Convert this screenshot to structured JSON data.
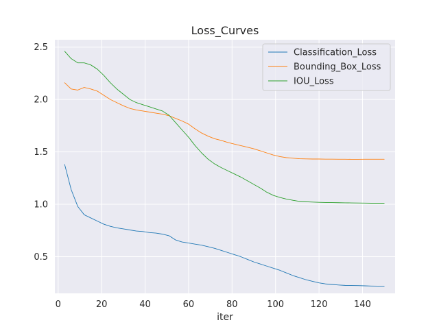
{
  "chart_data": {
    "type": "line",
    "title": "Loss_Curves",
    "xlabel": "iter",
    "ylabel": "",
    "xlim": [
      -1.5,
      155
    ],
    "ylim": [
      0.15,
      2.57
    ],
    "xticks": [
      0,
      20,
      40,
      60,
      80,
      100,
      120,
      140
    ],
    "yticks": [
      0.5,
      1.0,
      1.5,
      2.0,
      2.5
    ],
    "xtick_labels": [
      "0",
      "20",
      "40",
      "60",
      "80",
      "100",
      "120",
      "140"
    ],
    "ytick_labels": [
      "0.5",
      "1.0",
      "1.5",
      "2.0",
      "2.5"
    ],
    "grid": true,
    "legend_position": "upper right",
    "series": [
      {
        "name": "Classification_Loss",
        "color": "#1f77b4",
        "x": [
          3,
          6,
          9,
          12,
          15,
          18,
          21,
          24,
          27,
          30,
          33,
          36,
          39,
          42,
          45,
          48,
          51,
          54,
          57,
          60,
          63,
          66,
          69,
          72,
          75,
          78,
          81,
          84,
          87,
          90,
          93,
          96,
          99,
          102,
          105,
          108,
          111,
          114,
          117,
          120,
          123,
          126,
          129,
          132,
          135,
          138,
          141,
          144,
          147,
          150
        ],
        "y": [
          1.38,
          1.14,
          0.98,
          0.9,
          0.87,
          0.84,
          0.81,
          0.79,
          0.775,
          0.765,
          0.755,
          0.745,
          0.74,
          0.73,
          0.725,
          0.715,
          0.7,
          0.66,
          0.64,
          0.63,
          0.62,
          0.61,
          0.595,
          0.58,
          0.56,
          0.54,
          0.52,
          0.5,
          0.475,
          0.45,
          0.43,
          0.41,
          0.39,
          0.37,
          0.345,
          0.32,
          0.3,
          0.28,
          0.265,
          0.25,
          0.24,
          0.235,
          0.23,
          0.226,
          0.225,
          0.224,
          0.222,
          0.22,
          0.219,
          0.218
        ]
      },
      {
        "name": "Bounding_Box_Loss",
        "color": "#ff7f0e",
        "x": [
          3,
          6,
          9,
          12,
          15,
          18,
          21,
          24,
          27,
          30,
          33,
          36,
          39,
          42,
          45,
          48,
          51,
          54,
          57,
          60,
          63,
          66,
          69,
          72,
          75,
          78,
          81,
          84,
          87,
          90,
          93,
          96,
          99,
          102,
          105,
          108,
          111,
          114,
          117,
          120,
          123,
          126,
          129,
          132,
          135,
          138,
          141,
          144,
          147,
          150
        ],
        "y": [
          2.16,
          2.1,
          2.09,
          2.115,
          2.1,
          2.08,
          2.04,
          2.0,
          1.97,
          1.94,
          1.915,
          1.9,
          1.89,
          1.88,
          1.87,
          1.86,
          1.845,
          1.82,
          1.795,
          1.765,
          1.72,
          1.68,
          1.65,
          1.625,
          1.61,
          1.59,
          1.575,
          1.56,
          1.545,
          1.53,
          1.51,
          1.49,
          1.47,
          1.455,
          1.445,
          1.44,
          1.435,
          1.433,
          1.432,
          1.432,
          1.431,
          1.431,
          1.43,
          1.43,
          1.429,
          1.429,
          1.43,
          1.43,
          1.43,
          1.43
        ]
      },
      {
        "name": "IOU_Loss",
        "color": "#2ca02c",
        "x": [
          3,
          6,
          9,
          12,
          15,
          18,
          21,
          24,
          27,
          30,
          33,
          36,
          39,
          42,
          45,
          48,
          51,
          54,
          57,
          60,
          63,
          66,
          69,
          72,
          75,
          78,
          81,
          84,
          87,
          90,
          93,
          96,
          99,
          102,
          105,
          108,
          111,
          114,
          117,
          120,
          123,
          126,
          129,
          132,
          135,
          138,
          141,
          144,
          147,
          150
        ],
        "y": [
          2.46,
          2.39,
          2.35,
          2.35,
          2.33,
          2.29,
          2.23,
          2.16,
          2.1,
          2.05,
          2.0,
          1.97,
          1.95,
          1.93,
          1.91,
          1.89,
          1.85,
          1.78,
          1.71,
          1.64,
          1.56,
          1.49,
          1.43,
          1.385,
          1.35,
          1.32,
          1.29,
          1.26,
          1.225,
          1.19,
          1.155,
          1.115,
          1.085,
          1.065,
          1.05,
          1.038,
          1.028,
          1.024,
          1.021,
          1.019,
          1.017,
          1.016,
          1.015,
          1.014,
          1.013,
          1.012,
          1.011,
          1.01,
          1.01,
          1.01
        ]
      }
    ]
  }
}
